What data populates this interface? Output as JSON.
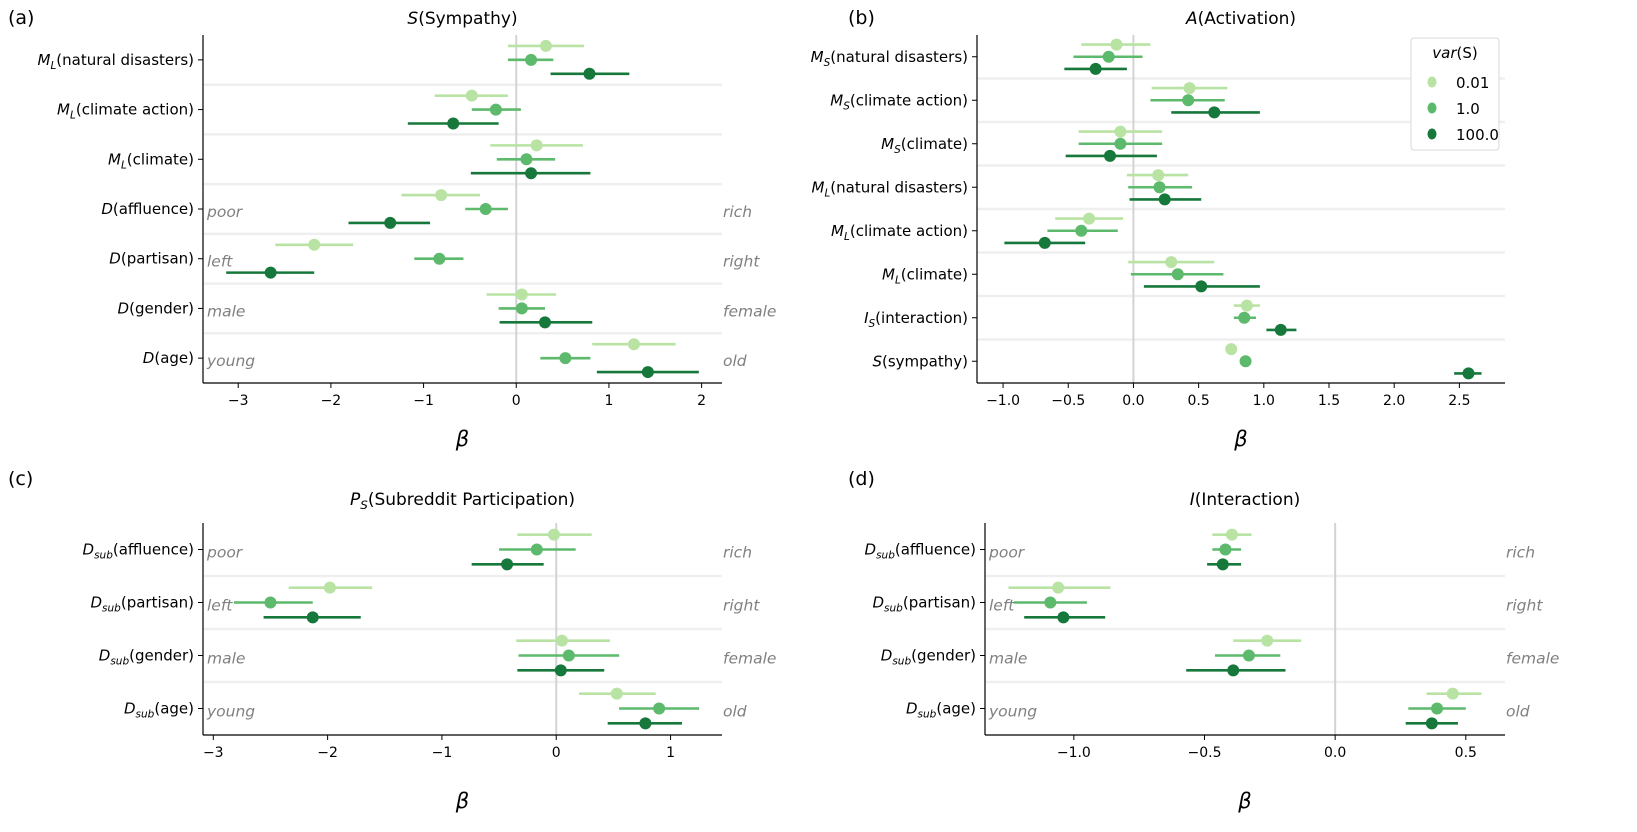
{
  "colors": {
    "0.01": "#b8e3a3",
    "1.0": "#5db96b",
    "100.0": "#17783b",
    "zero_line": "#d3d3d3",
    "separator": "#efefef",
    "side_label": "#808080"
  },
  "legend": {
    "title_var": "var",
    "title_arg": "(S)",
    "entries": [
      "0.01",
      "1.0",
      "100.0"
    ],
    "placement": "top-right of panel (b)"
  },
  "chart_data": [
    {
      "type": "forest",
      "panel": "(a)",
      "title": {
        "var": "S",
        "sub": "",
        "text": "(Sympathy)"
      },
      "xlabel": "β",
      "xlim": [
        -3.38,
        2.22
      ],
      "xticks": [
        -3,
        -2,
        -1,
        0,
        1,
        2
      ],
      "tick_labels": [
        "−3",
        "−2",
        "−1",
        "0",
        "1",
        "2"
      ],
      "series_names": [
        "0.01",
        "1.0",
        "100.0"
      ],
      "rows": [
        {
          "label": {
            "var": "M",
            "sub": "L",
            "text": "(natural disasters)"
          },
          "left": "",
          "right": "",
          "est": [
            0.32,
            0.16,
            0.79
          ],
          "lo": [
            -0.09,
            -0.09,
            0.37
          ],
          "hi": [
            0.73,
            0.4,
            1.22
          ]
        },
        {
          "label": {
            "var": "M",
            "sub": "L",
            "text": "(climate action)"
          },
          "left": "",
          "right": "",
          "est": [
            -0.48,
            -0.22,
            -0.68
          ],
          "lo": [
            -0.88,
            -0.48,
            -1.17
          ],
          "hi": [
            -0.09,
            0.05,
            -0.19
          ]
        },
        {
          "label": {
            "var": "M",
            "sub": "L",
            "text": "(climate)"
          },
          "left": "",
          "right": "",
          "est": [
            0.22,
            0.11,
            0.16
          ],
          "lo": [
            -0.28,
            -0.21,
            -0.49
          ],
          "hi": [
            0.72,
            0.42,
            0.8
          ]
        },
        {
          "label": {
            "var": "D",
            "sub": "",
            "text": "(affluence)"
          },
          "left": "poor",
          "right": "rich",
          "est": [
            -0.81,
            -0.33,
            -1.36
          ],
          "lo": [
            -1.24,
            -0.55,
            -1.81
          ],
          "hi": [
            -0.39,
            -0.09,
            -0.93
          ]
        },
        {
          "label": {
            "var": "D",
            "sub": "",
            "text": "(partisan)"
          },
          "left": "left",
          "right": "right",
          "est": [
            -2.18,
            -0.83,
            -2.65
          ],
          "lo": [
            -2.6,
            -1.1,
            -3.13
          ],
          "hi": [
            -1.76,
            -0.57,
            -2.18
          ]
        },
        {
          "label": {
            "var": "D",
            "sub": "",
            "text": "(gender)"
          },
          "left": "male",
          "right": "female",
          "est": [
            0.06,
            0.06,
            0.31
          ],
          "lo": [
            -0.32,
            -0.19,
            -0.18
          ],
          "hi": [
            0.43,
            0.31,
            0.82
          ]
        },
        {
          "label": {
            "var": "D",
            "sub": "",
            "text": "(age)"
          },
          "left": "young",
          "right": "old",
          "est": [
            1.27,
            0.53,
            1.42
          ],
          "lo": [
            0.82,
            0.26,
            0.87
          ],
          "hi": [
            1.72,
            0.8,
            1.97
          ]
        }
      ]
    },
    {
      "type": "forest",
      "panel": "(b)",
      "title": {
        "var": "A",
        "sub": "",
        "text": "(Activation)"
      },
      "xlabel": "β",
      "xlim": [
        -1.2,
        2.85
      ],
      "xticks": [
        -1.0,
        -0.5,
        0.0,
        0.5,
        1.0,
        1.5,
        2.0,
        2.5
      ],
      "tick_labels": [
        "−1.0",
        "−0.5",
        "0.0",
        "0.5",
        "1.0",
        "1.5",
        "2.0",
        "2.5"
      ],
      "series_names": [
        "0.01",
        "1.0",
        "100.0"
      ],
      "rows": [
        {
          "label": {
            "var": "M",
            "sub": "S",
            "text": "(natural disasters)"
          },
          "left": "",
          "right": "",
          "est": [
            -0.13,
            -0.19,
            -0.29
          ],
          "lo": [
            -0.4,
            -0.46,
            -0.53
          ],
          "hi": [
            0.13,
            0.07,
            -0.05
          ]
        },
        {
          "label": {
            "var": "M",
            "sub": "S",
            "text": "(climate action)"
          },
          "left": "",
          "right": "",
          "est": [
            0.43,
            0.42,
            0.62
          ],
          "lo": [
            0.14,
            0.13,
            0.29
          ],
          "hi": [
            0.72,
            0.7,
            0.97
          ]
        },
        {
          "label": {
            "var": "M",
            "sub": "S",
            "text": "(climate)"
          },
          "left": "",
          "right": "",
          "est": [
            -0.1,
            -0.1,
            -0.18
          ],
          "lo": [
            -0.42,
            -0.42,
            -0.52
          ],
          "hi": [
            0.22,
            0.22,
            0.18
          ]
        },
        {
          "label": {
            "var": "M",
            "sub": "L",
            "text": "(natural disasters)"
          },
          "left": "",
          "right": "",
          "est": [
            0.19,
            0.2,
            0.24
          ],
          "lo": [
            -0.05,
            -0.04,
            -0.03
          ],
          "hi": [
            0.42,
            0.45,
            0.52
          ]
        },
        {
          "label": {
            "var": "M",
            "sub": "L",
            "text": "(climate action)"
          },
          "left": "",
          "right": "",
          "est": [
            -0.34,
            -0.4,
            -0.68
          ],
          "lo": [
            -0.6,
            -0.66,
            -0.99
          ],
          "hi": [
            -0.08,
            -0.12,
            -0.37
          ]
        },
        {
          "label": {
            "var": "M",
            "sub": "L",
            "text": "(climate)"
          },
          "left": "",
          "right": "",
          "est": [
            0.29,
            0.34,
            0.52
          ],
          "lo": [
            -0.04,
            -0.02,
            0.08
          ],
          "hi": [
            0.62,
            0.69,
            0.97
          ]
        },
        {
          "label": {
            "var": "I",
            "sub": "S",
            "text": "(interaction)"
          },
          "left": "",
          "right": "",
          "est": [
            0.87,
            0.85,
            1.13
          ],
          "lo": [
            0.77,
            0.77,
            1.02
          ],
          "hi": [
            0.97,
            0.94,
            1.25
          ]
        },
        {
          "label": {
            "var": "S",
            "sub": "",
            "text": "(sympathy)"
          },
          "left": "",
          "right": "",
          "est": [
            0.75,
            0.86,
            2.57
          ],
          "lo": [
            0.73,
            0.84,
            2.46
          ],
          "hi": [
            0.77,
            0.88,
            2.67
          ]
        }
      ]
    },
    {
      "type": "forest",
      "panel": "(c)",
      "title": {
        "var": "P",
        "sub": "S",
        "text": "(Subreddit Participation)"
      },
      "xlabel": "β",
      "xlim": [
        -3.09,
        1.45
      ],
      "xticks": [
        -3,
        -2,
        -1,
        0,
        1
      ],
      "tick_labels": [
        "−3",
        "−2",
        "−1",
        "0",
        "1"
      ],
      "series_names": [
        "0.01",
        "1.0",
        "100.0"
      ],
      "rows": [
        {
          "label": {
            "var": "D",
            "sub": "sub",
            "text": "(affluence)"
          },
          "left": "poor",
          "right": "rich",
          "est": [
            -0.02,
            -0.17,
            -0.43
          ],
          "lo": [
            -0.34,
            -0.5,
            -0.74
          ],
          "hi": [
            0.31,
            0.17,
            -0.11
          ]
        },
        {
          "label": {
            "var": "D",
            "sub": "sub",
            "text": "(partisan)"
          },
          "left": "left",
          "right": "right",
          "est": [
            -1.98,
            -2.5,
            -2.13
          ],
          "lo": [
            -2.34,
            -2.82,
            -2.56
          ],
          "hi": [
            -1.61,
            -2.13,
            -1.71
          ]
        },
        {
          "label": {
            "var": "D",
            "sub": "sub",
            "text": "(gender)"
          },
          "left": "male",
          "right": "female",
          "est": [
            0.05,
            0.11,
            0.04
          ],
          "lo": [
            -0.35,
            -0.33,
            -0.34
          ],
          "hi": [
            0.47,
            0.55,
            0.42
          ]
        },
        {
          "label": {
            "var": "D",
            "sub": "sub",
            "text": "(age)"
          },
          "left": "young",
          "right": "old",
          "est": [
            0.53,
            0.9,
            0.78
          ],
          "lo": [
            0.2,
            0.55,
            0.45
          ],
          "hi": [
            0.87,
            1.25,
            1.1
          ]
        }
      ]
    },
    {
      "type": "forest",
      "panel": "(d)",
      "title": {
        "var": "I",
        "sub": "",
        "text": "(Interaction)"
      },
      "xlabel": "β",
      "xlim": [
        -1.34,
        0.65
      ],
      "xticks": [
        -1.0,
        -0.5,
        0.0,
        0.5
      ],
      "tick_labels": [
        "−1.0",
        "−0.5",
        "0.0",
        "0.5"
      ],
      "series_names": [
        "0.01",
        "1.0",
        "100.0"
      ],
      "rows": [
        {
          "label": {
            "var": "D",
            "sub": "sub",
            "text": "(affluence)"
          },
          "left": "poor",
          "right": "rich",
          "est": [
            -0.395,
            -0.42,
            -0.43
          ],
          "lo": [
            -0.47,
            -0.47,
            -0.49
          ],
          "hi": [
            -0.32,
            -0.36,
            -0.36
          ]
        },
        {
          "label": {
            "var": "D",
            "sub": "sub",
            "text": "(partisan)"
          },
          "left": "left",
          "right": "right",
          "est": [
            -1.06,
            -1.09,
            -1.04
          ],
          "lo": [
            -1.25,
            -1.23,
            -1.19
          ],
          "hi": [
            -0.86,
            -0.95,
            -0.88
          ]
        },
        {
          "label": {
            "var": "D",
            "sub": "sub",
            "text": "(gender)"
          },
          "left": "male",
          "right": "female",
          "est": [
            -0.26,
            -0.33,
            -0.39
          ],
          "lo": [
            -0.39,
            -0.46,
            -0.57
          ],
          "hi": [
            -0.13,
            -0.21,
            -0.19
          ]
        },
        {
          "label": {
            "var": "D",
            "sub": "sub",
            "text": "(age)"
          },
          "left": "young",
          "right": "old",
          "est": [
            0.45,
            0.39,
            0.37
          ],
          "lo": [
            0.35,
            0.28,
            0.27
          ],
          "hi": [
            0.56,
            0.5,
            0.47
          ]
        }
      ]
    }
  ]
}
